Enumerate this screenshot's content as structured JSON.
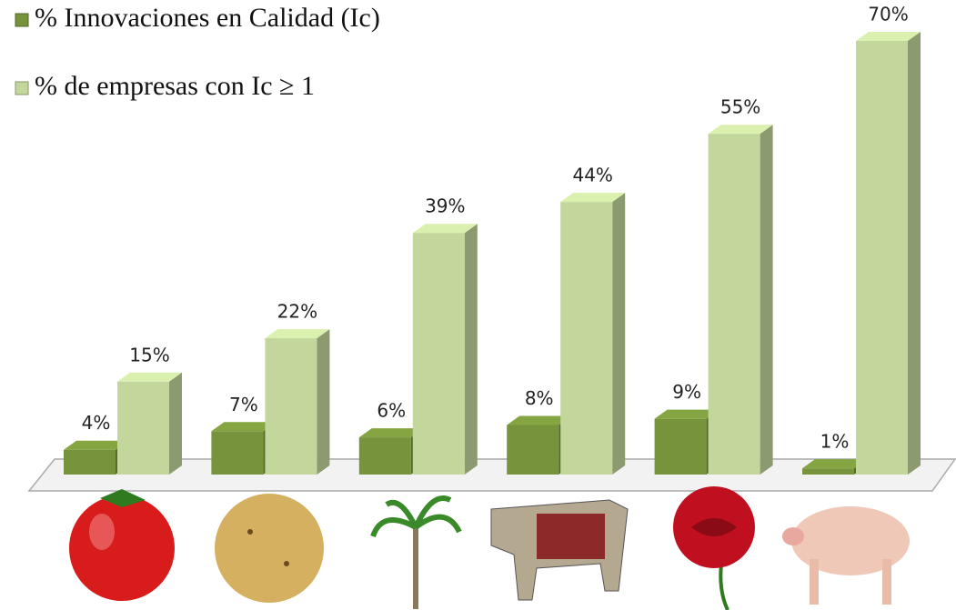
{
  "chart_data": {
    "type": "bar3d",
    "categories": [
      null,
      null,
      null,
      null,
      null,
      null
    ],
    "series": [
      {
        "name": "% Innovaciones en Calidad (Ic)",
        "color": "#77933c",
        "values": [
          4,
          7,
          6,
          8,
          9,
          1
        ],
        "value_labels": [
          "4%",
          "7%",
          "6%",
          "8%",
          "9%",
          "1%"
        ]
      },
      {
        "name": "% de empresas con  Ic ≥ 1",
        "color": "#c3d69b",
        "values": [
          15,
          22,
          39,
          44,
          55,
          70
        ],
        "value_labels": [
          "15%",
          "22%",
          "39%",
          "44%",
          "55%",
          "70%"
        ]
      }
    ]
  }
}
